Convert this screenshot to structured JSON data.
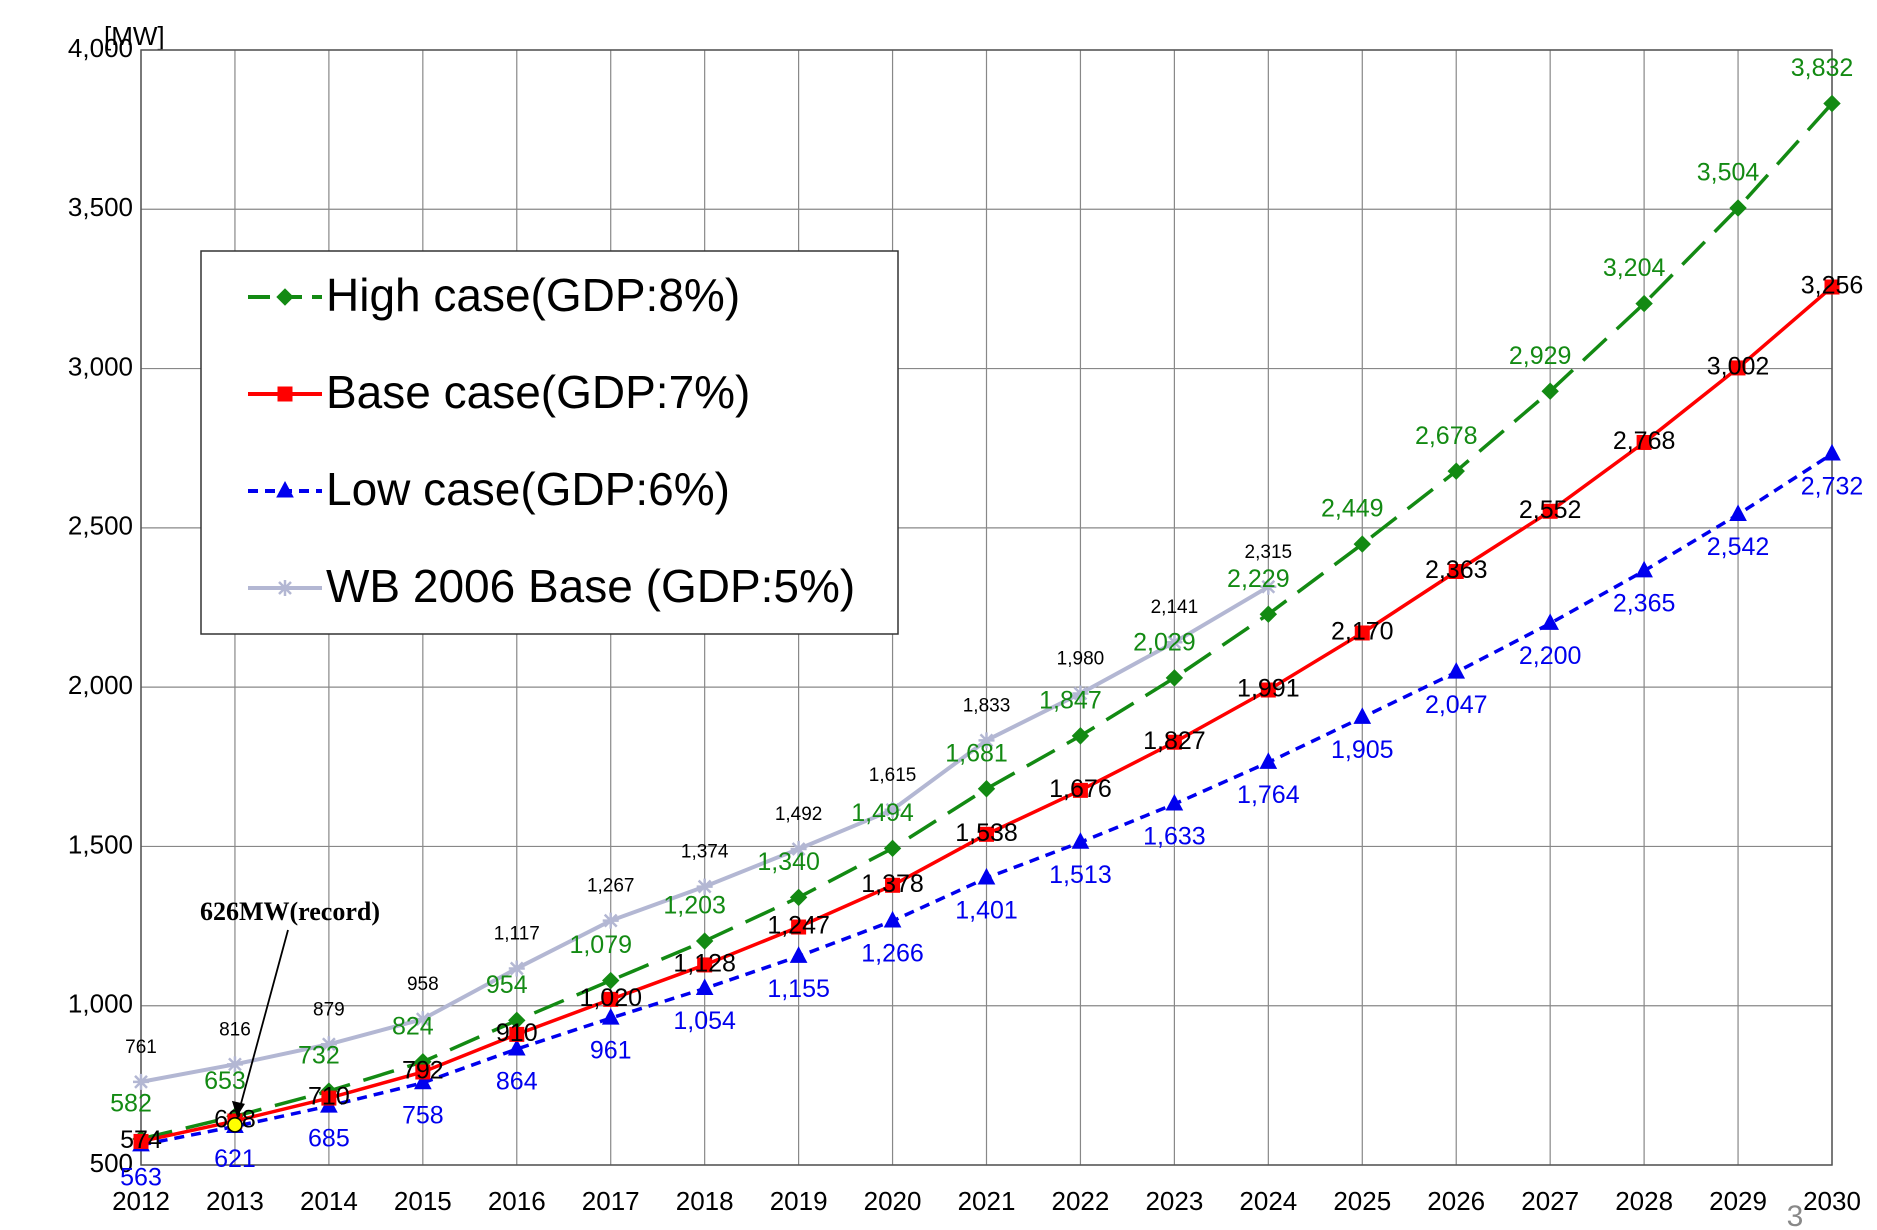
{
  "chart_data": {
    "type": "line",
    "ylabel": "[MW]",
    "categories": [
      "2012",
      "2013",
      "2014",
      "2015",
      "2016",
      "2017",
      "2018",
      "2019",
      "2020",
      "2021",
      "2022",
      "2023",
      "2024",
      "2025",
      "2026",
      "2027",
      "2028",
      "2029",
      "2030"
    ],
    "series": [
      {
        "name": "High case(GDP:8%)",
        "color": "#138a13",
        "marker": "diamond",
        "dash": "long",
        "values": [
          582,
          653,
          732,
          824,
          954,
          1079,
          1203,
          1340,
          1494,
          1681,
          1847,
          2029,
          2229,
          2449,
          2678,
          2929,
          3204,
          3504,
          3832
        ],
        "value_labels": [
          "582",
          "653",
          "732",
          "824",
          "954",
          "1,079",
          "1,203",
          "1,340",
          "1,494",
          "1,681",
          "1,847",
          "2,029",
          "2,229",
          "2,449",
          "2,678",
          "2,929",
          "3,204",
          "3,504",
          "3,832"
        ]
      },
      {
        "name": "Base case(GDP:7%)",
        "color": "#ff0000",
        "marker": "square",
        "dash": "solid",
        "values": [
          574,
          638,
          710,
          792,
          910,
          1020,
          1128,
          1247,
          1378,
          1538,
          1676,
          1827,
          1991,
          2170,
          2363,
          2552,
          2768,
          3002,
          3256
        ],
        "value_labels": [
          "574",
          "638",
          "710",
          "792",
          "910",
          "1,020",
          "1,128",
          "1,247",
          "1,378",
          "1,538",
          "1,676",
          "1,827",
          "1,991",
          "2,170",
          "2,363",
          "2,552",
          "2,768",
          "3,002",
          "3,256"
        ]
      },
      {
        "name": "Low case(GDP:6%)",
        "color": "#0000ee",
        "marker": "triangle",
        "dash": "short",
        "values": [
          563,
          621,
          685,
          758,
          864,
          961,
          1054,
          1155,
          1266,
          1401,
          1513,
          1633,
          1764,
          1905,
          2047,
          2200,
          2365,
          2542,
          2732
        ],
        "value_labels": [
          "563",
          "621",
          "685",
          "758",
          "864",
          "961",
          "1,054",
          "1,155",
          "1,266",
          "1,401",
          "1,513",
          "1,633",
          "1,764",
          "1,905",
          "2,047",
          "2,200",
          "2,365",
          "2,542",
          "2,732"
        ]
      },
      {
        "name": "WB 2006 Base (GDP:5%)",
        "color": "#b3b7d3",
        "marker": "star",
        "dash": "solid",
        "values": [
          761,
          816,
          879,
          958,
          1117,
          1267,
          1374,
          1492,
          1615,
          1833,
          1980,
          2141,
          2315,
          null,
          null,
          null,
          null,
          null,
          null
        ],
        "value_labels": [
          "761",
          "816",
          "879",
          "958",
          "1,117",
          "1,267",
          "1,374",
          "1,492",
          "1,615",
          "1,833",
          "1,980",
          "2,141",
          "2,315",
          null,
          null,
          null,
          null,
          null,
          null
        ]
      }
    ],
    "ylim": [
      500,
      4000
    ],
    "yticks": [
      500,
      {
        "value": 1000,
        "label": "1,000"
      },
      {
        "value": 1500,
        "label": "1,500"
      },
      {
        "value": 2000,
        "label": "2,000"
      },
      {
        "value": 2500,
        "label": "2,500"
      },
      {
        "value": 3000,
        "label": "3,000"
      },
      {
        "value": 3500,
        "label": "3,500"
      },
      {
        "value": 4000,
        "label": "4,000"
      }
    ],
    "grid": true,
    "legend": "upper left",
    "annotation": {
      "text": "626MW(record)",
      "category": 1,
      "value": 626,
      "color": "#ffff00"
    },
    "page_number": "3"
  }
}
